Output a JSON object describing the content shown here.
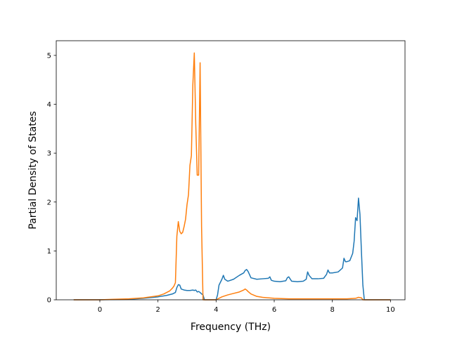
{
  "chart_data": {
    "type": "line",
    "title": "",
    "xlabel": "Frequency (THz)",
    "ylabel": "Partial Density of States",
    "xlim": [
      -1.5,
      10.5
    ],
    "ylim": [
      0,
      5.3
    ],
    "xticks": [
      0,
      2,
      4,
      6,
      8,
      10
    ],
    "yticks": [
      0,
      1,
      2,
      3,
      4,
      5
    ],
    "grid": false,
    "legend": "none",
    "series": [
      {
        "color": "#1f77b4",
        "x": [
          -0.9,
          0.0,
          0.5,
          1.0,
          1.5,
          2.0,
          2.3,
          2.5,
          2.6,
          2.65,
          2.7,
          2.75,
          2.8,
          2.9,
          3.0,
          3.1,
          3.2,
          3.25,
          3.3,
          3.35,
          3.4,
          3.45,
          3.5,
          3.55,
          3.6,
          3.65,
          3.7,
          3.8,
          3.9,
          4.0,
          4.05,
          4.1,
          4.2,
          4.25,
          4.3,
          4.4,
          4.6,
          4.8,
          4.95,
          5.0,
          5.05,
          5.1,
          5.2,
          5.4,
          5.6,
          5.8,
          5.85,
          5.9,
          6.0,
          6.2,
          6.4,
          6.45,
          6.5,
          6.6,
          6.8,
          7.0,
          7.1,
          7.15,
          7.2,
          7.3,
          7.5,
          7.7,
          7.8,
          7.85,
          7.9,
          8.0,
          8.2,
          8.35,
          8.4,
          8.45,
          8.5,
          8.6,
          8.7,
          8.75,
          8.8,
          8.85,
          8.9,
          8.95,
          9.0,
          9.05,
          9.1,
          10.0
        ],
        "y": [
          0.0,
          0.0,
          0.005,
          0.01,
          0.03,
          0.06,
          0.09,
          0.12,
          0.15,
          0.25,
          0.31,
          0.3,
          0.22,
          0.2,
          0.19,
          0.19,
          0.2,
          0.19,
          0.2,
          0.16,
          0.17,
          0.15,
          0.12,
          0.1,
          0.0,
          0.0,
          0.0,
          0.0,
          0.0,
          0.0,
          0.1,
          0.3,
          0.42,
          0.5,
          0.42,
          0.38,
          0.42,
          0.5,
          0.55,
          0.6,
          0.62,
          0.58,
          0.45,
          0.42,
          0.43,
          0.44,
          0.47,
          0.4,
          0.38,
          0.37,
          0.39,
          0.45,
          0.47,
          0.38,
          0.37,
          0.38,
          0.42,
          0.57,
          0.5,
          0.43,
          0.43,
          0.44,
          0.52,
          0.61,
          0.55,
          0.55,
          0.57,
          0.65,
          0.85,
          0.78,
          0.78,
          0.8,
          0.95,
          1.2,
          1.68,
          1.62,
          2.08,
          1.75,
          1.0,
          0.3,
          0.0,
          0.0
        ]
      },
      {
        "color": "#ff7f0e",
        "x": [
          -0.9,
          0.0,
          0.5,
          1.0,
          1.5,
          2.0,
          2.2,
          2.4,
          2.5,
          2.55,
          2.6,
          2.65,
          2.7,
          2.75,
          2.8,
          2.85,
          2.9,
          2.95,
          3.0,
          3.05,
          3.1,
          3.15,
          3.2,
          3.25,
          3.3,
          3.35,
          3.4,
          3.45,
          3.5,
          3.55,
          3.6,
          3.65,
          3.7,
          3.8,
          3.9,
          4.0,
          4.2,
          4.4,
          4.6,
          4.8,
          4.95,
          5.0,
          5.05,
          5.1,
          5.2,
          5.4,
          5.6,
          6.0,
          6.5,
          7.0,
          7.5,
          8.0,
          8.5,
          8.8,
          8.9,
          9.0,
          9.05,
          10.0
        ],
        "y": [
          0.0,
          0.0,
          0.01,
          0.02,
          0.04,
          0.08,
          0.12,
          0.18,
          0.24,
          0.28,
          0.35,
          1.3,
          1.6,
          1.4,
          1.35,
          1.38,
          1.5,
          1.65,
          1.95,
          2.15,
          2.75,
          2.95,
          4.4,
          5.05,
          3.6,
          2.55,
          2.55,
          4.85,
          1.5,
          0.0,
          0.0,
          0.0,
          0.0,
          0.0,
          0.0,
          0.0,
          0.06,
          0.1,
          0.13,
          0.16,
          0.2,
          0.22,
          0.2,
          0.17,
          0.12,
          0.07,
          0.05,
          0.03,
          0.02,
          0.02,
          0.02,
          0.02,
          0.02,
          0.03,
          0.05,
          0.04,
          0.0,
          0.0
        ]
      }
    ]
  }
}
